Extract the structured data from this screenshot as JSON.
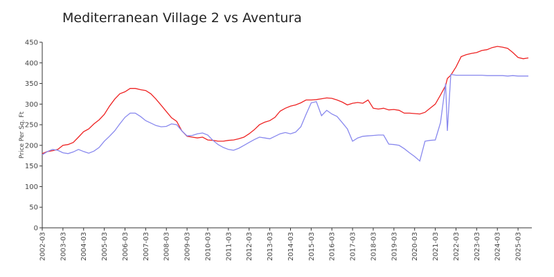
{
  "chart_data": {
    "type": "line",
    "title": "Mediterranean Village 2 vs Aventura",
    "y_label": "Price Per Sq. Ft",
    "x": [
      "2002-03",
      "2002-06",
      "2002-09",
      "2002-12",
      "2003-03",
      "2003-06",
      "2003-09",
      "2003-12",
      "2004-03",
      "2004-06",
      "2004-09",
      "2004-12",
      "2005-03",
      "2005-06",
      "2005-09",
      "2005-12",
      "2006-03",
      "2006-06",
      "2006-09",
      "2006-12",
      "2007-03",
      "2007-06",
      "2007-09",
      "2007-12",
      "2008-03",
      "2008-06",
      "2008-09",
      "2008-12",
      "2009-03",
      "2009-06",
      "2009-09",
      "2009-12",
      "2010-03",
      "2010-06",
      "2010-09",
      "2010-12",
      "2011-03",
      "2011-06",
      "2011-09",
      "2011-12",
      "2012-03",
      "2012-06",
      "2012-09",
      "2012-12",
      "2013-03",
      "2013-06",
      "2013-09",
      "2013-12",
      "2014-03",
      "2014-06",
      "2014-09",
      "2014-12",
      "2015-03",
      "2015-06",
      "2015-09",
      "2015-12",
      "2016-03",
      "2016-06",
      "2016-09",
      "2016-12",
      "2017-03",
      "2017-06",
      "2017-09",
      "2017-12",
      "2018-03",
      "2018-06",
      "2018-09",
      "2018-12",
      "2019-03",
      "2019-06",
      "2019-09",
      "2019-12",
      "2020-03",
      "2020-06",
      "2020-09",
      "2020-12",
      "2021-03",
      "2021-06",
      "2021-09",
      "2021-10",
      "2021-12",
      "2022-03",
      "2022-06",
      "2022-09",
      "2022-12",
      "2023-03",
      "2023-06",
      "2023-09",
      "2023-12",
      "2024-03",
      "2024-06",
      "2024-09",
      "2024-12",
      "2025-03",
      "2025-06",
      "2025-09"
    ],
    "series": [
      {
        "color": "#ee2222",
        "values": [
          180,
          185,
          187,
          190,
          200,
          202,
          207,
          220,
          233,
          240,
          252,
          262,
          275,
          295,
          312,
          325,
          330,
          338,
          338,
          335,
          333,
          325,
          312,
          297,
          282,
          267,
          258,
          235,
          222,
          220,
          218,
          220,
          213,
          212,
          210,
          210,
          212,
          213,
          216,
          220,
          228,
          238,
          250,
          256,
          260,
          268,
          283,
          290,
          295,
          298,
          303,
          310,
          310,
          311,
          313,
          315,
          314,
          310,
          305,
          298,
          302,
          304,
          302,
          310,
          290,
          288,
          290,
          286,
          287,
          285,
          278,
          278,
          277,
          276,
          280,
          290,
          300,
          322,
          345,
          362,
          370,
          390,
          415,
          420,
          423,
          425,
          430,
          432,
          437,
          440,
          438,
          435,
          425,
          413,
          410,
          412
        ]
      },
      {
        "color": "#8888ee",
        "values": [
          177,
          185,
          190,
          188,
          182,
          180,
          184,
          190,
          185,
          181,
          186,
          195,
          210,
          222,
          235,
          252,
          268,
          278,
          278,
          270,
          260,
          254,
          248,
          245,
          246,
          252,
          250,
          235,
          223,
          224,
          228,
          230,
          225,
          212,
          202,
          195,
          190,
          188,
          193,
          200,
          207,
          214,
          220,
          218,
          216,
          222,
          228,
          231,
          228,
          232,
          245,
          275,
          303,
          306,
          272,
          285,
          276,
          270,
          255,
          240,
          210,
          218,
          222,
          223,
          224,
          225,
          225,
          203,
          202,
          200,
          192,
          182,
          173,
          162,
          210,
          212,
          213,
          255,
          350,
          235,
          372,
          370,
          370,
          370,
          370,
          370,
          370,
          369,
          369,
          369,
          369,
          368,
          369,
          368,
          368,
          368
        ]
      }
    ],
    "xlim": [
      "2002-03",
      "2025-11"
    ],
    "xticks": [
      "2002-03",
      "2003-03",
      "2004-03",
      "2005-03",
      "2006-03",
      "2007-03",
      "2008-03",
      "2009-03",
      "2010-03",
      "2011-03",
      "2012-03",
      "2013-03",
      "2014-03",
      "2015-03",
      "2016-03",
      "2017-03",
      "2018-03",
      "2019-03",
      "2020-03",
      "2021-03",
      "2022-03",
      "2023-03",
      "2024-03",
      "2025-03"
    ],
    "ylim": [
      0,
      450
    ],
    "yticks": [
      0,
      50,
      100,
      150,
      200,
      250,
      300,
      350,
      400,
      450
    ],
    "grid": false
  }
}
